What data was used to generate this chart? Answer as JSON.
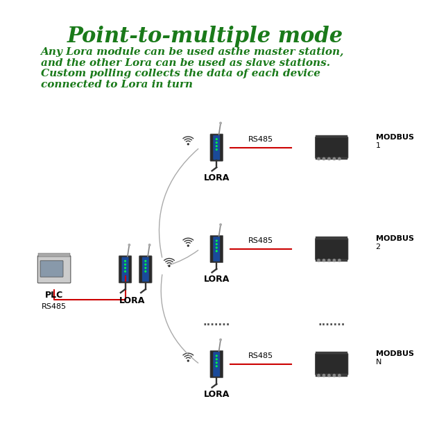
{
  "title": "Point-to-multiple mode",
  "title_color": "#1a7a1a",
  "title_fontsize": 22,
  "bg_color": "#ffffff",
  "description": [
    "Any Lora module can be used asthe master station,",
    "and the other Lora can be used as slave stations.",
    "Custom polling collects the data of each device",
    "connected to Lora in turn"
  ],
  "desc_color": "#1a7a1a",
  "desc_fontsize": 11,
  "rs485_color": "#cc0000",
  "label_color": "#000000",
  "dots_color": "#555555",
  "device_dark": "#2a2a2a",
  "device_blue": "#1a3a8a",
  "device_gray": "#888888"
}
